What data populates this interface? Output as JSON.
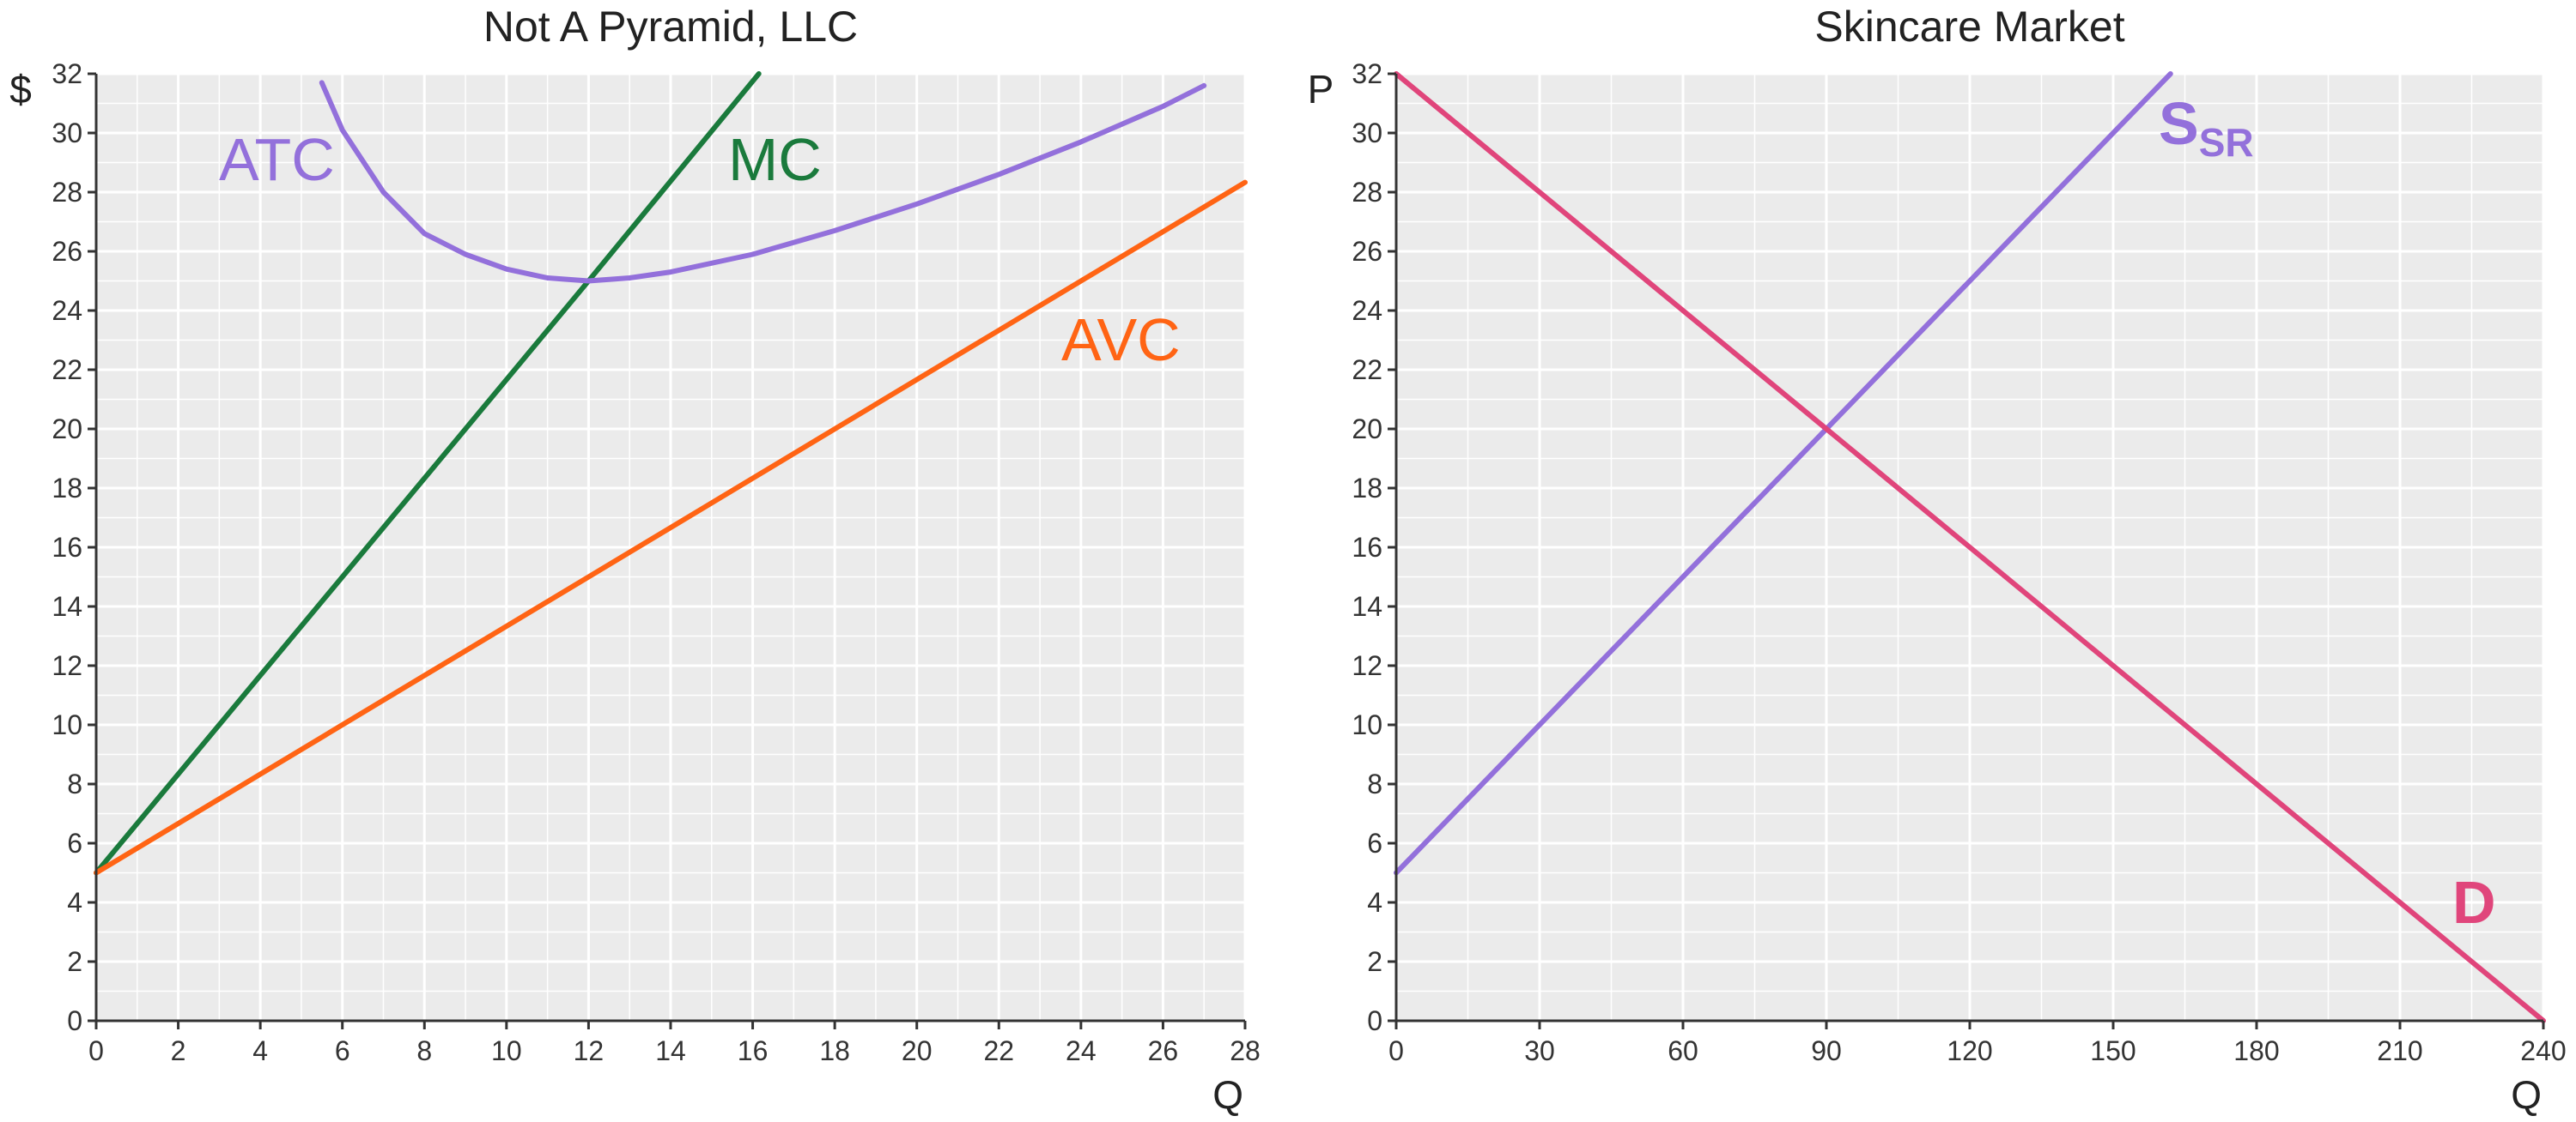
{
  "colors": {
    "panel_bg": "#EBEBEB",
    "grid": "#FFFFFF",
    "axis": "#333333",
    "mc": "#1A7A3C",
    "atc": "#9370DB",
    "avc": "#FF6414",
    "supply": "#9370DB",
    "demand": "#E0457B"
  },
  "chart_data": [
    {
      "type": "line",
      "title": "Not A Pyramid, LLC",
      "xlabel": "Q",
      "ylabel": "$",
      "xlim": [
        0,
        28
      ],
      "ylim": [
        0,
        32
      ],
      "x_ticks": [
        0,
        2,
        4,
        6,
        8,
        10,
        12,
        14,
        16,
        18,
        20,
        22,
        24,
        26,
        28
      ],
      "y_ticks": [
        0,
        2,
        4,
        6,
        8,
        10,
        12,
        14,
        16,
        18,
        20,
        22,
        24,
        26,
        28,
        30,
        32
      ],
      "grid": true,
      "series": [
        {
          "name": "MC",
          "label": "MC",
          "color_key": "mc",
          "x": [
            0,
            4,
            8,
            12,
            16.15
          ],
          "y": [
            5,
            11.67,
            18.33,
            25,
            32
          ]
        },
        {
          "name": "ATC",
          "label": "ATC",
          "color_key": "atc",
          "x": [
            5.5,
            6,
            7,
            8,
            9,
            10,
            11,
            12,
            13,
            14,
            16,
            18,
            20,
            22,
            24,
            26,
            27
          ],
          "y": [
            31.7,
            30.1,
            28.0,
            26.6,
            25.9,
            25.4,
            25.1,
            25.0,
            25.1,
            25.3,
            25.9,
            26.7,
            27.6,
            28.6,
            29.7,
            30.9,
            31.6
          ]
        },
        {
          "name": "AVC",
          "label": "AVC",
          "color_key": "avc",
          "x": [
            0,
            28
          ],
          "y": [
            5,
            28.33
          ]
        }
      ]
    },
    {
      "type": "line",
      "title": "Skincare Market",
      "xlabel": "Q",
      "ylabel": "P",
      "xlim": [
        0,
        240
      ],
      "ylim": [
        0,
        32
      ],
      "x_ticks": [
        0,
        30,
        60,
        90,
        120,
        150,
        180,
        210,
        240
      ],
      "y_ticks": [
        0,
        2,
        4,
        6,
        8,
        10,
        12,
        14,
        16,
        18,
        20,
        22,
        24,
        26,
        28,
        30,
        32
      ],
      "grid": true,
      "series": [
        {
          "name": "S_SR",
          "label": "S",
          "label_sub": "SR",
          "color_key": "supply",
          "x": [
            0,
            90,
            162
          ],
          "y": [
            5,
            20,
            32
          ]
        },
        {
          "name": "D",
          "label": "D",
          "color_key": "demand",
          "x": [
            0,
            90,
            240
          ],
          "y": [
            32,
            20,
            0
          ]
        }
      ]
    }
  ]
}
